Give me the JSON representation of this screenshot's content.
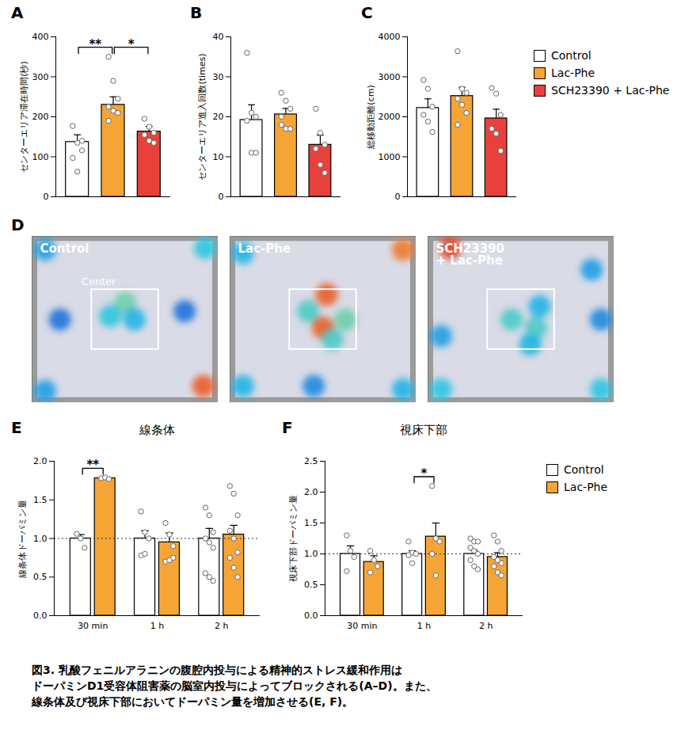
{
  "chart_data": [
    {
      "panel": "A",
      "type": "bar",
      "ylabel": "センターエリア滞在時間(秒)",
      "categories": [
        "Control",
        "Lac-Phe",
        "SCH23390 + Lac-Phe"
      ],
      "colors": [
        "#ffffff",
        "#f5a536",
        "#e8413c"
      ],
      "values": [
        137,
        230,
        163
      ],
      "errors": [
        18,
        20,
        13
      ],
      "points": [
        [
          177,
          135,
          116,
          97,
          63,
          140
        ],
        [
          350,
          290,
          245,
          225,
          215,
          210,
          190
        ],
        [
          195,
          175,
          160,
          155,
          140,
          135
        ]
      ],
      "ylim": [
        0,
        400
      ],
      "yticks": [
        0,
        100,
        200,
        300,
        400
      ],
      "tick_labels": "y",
      "significance": [
        {
          "from": 0,
          "to": 1,
          "label": "**"
        },
        {
          "from": 1,
          "to": 2,
          "label": "*"
        }
      ]
    },
    {
      "panel": "B",
      "type": "bar",
      "ylabel": "センターエリア進入回数(times)",
      "categories": [
        "Control",
        "Lac-Phe",
        "SCH23390 + Lac-Phe"
      ],
      "colors": [
        "#ffffff",
        "#f5a536",
        "#e8413c"
      ],
      "values": [
        19.2,
        20.6,
        13
      ],
      "errors": [
        3.8,
        1.5,
        2.4
      ],
      "points": [
        [
          36,
          21,
          20,
          19,
          11,
          11
        ],
        [
          26,
          24,
          22,
          20,
          17,
          17,
          18
        ],
        [
          22,
          16,
          13,
          12,
          8,
          6
        ]
      ],
      "ylim": [
        0,
        40
      ],
      "yticks": [
        0,
        10,
        20,
        30,
        40
      ],
      "tick_labels": "y"
    },
    {
      "panel": "C",
      "type": "bar",
      "ylabel": "総移動距離(cm)",
      "categories": [
        "Control",
        "Lac-Phe",
        "SCH23390 + Lac-Phe"
      ],
      "colors": [
        "#ffffff",
        "#f5a536",
        "#e8413c"
      ],
      "values": [
        2220,
        2520,
        1960
      ],
      "errors": [
        230,
        220,
        230
      ],
      "points": [
        [
          2920,
          2700,
          2250,
          2050,
          1880,
          1620
        ],
        [
          3640,
          2700,
          2600,
          2450,
          2300,
          2100,
          1800
        ],
        [
          2720,
          2580,
          2050,
          1700,
          1580,
          1150
        ]
      ],
      "ylim": [
        0,
        4000
      ],
      "yticks": [
        0,
        1000,
        2000,
        3000,
        4000
      ],
      "tick_labels": "y",
      "legend": "right"
    },
    {
      "panel": "D",
      "type": "heatmap",
      "tick_labels": false,
      "center_label": "Center",
      "center_area": [
        0.32,
        0.68
      ],
      "panels": [
        {
          "name": "Control",
          "hotspots": [
            [
              0.93,
              0.07,
              0.35
            ],
            [
              0.07,
              0.08,
              0.25
            ],
            [
              0.07,
              0.93,
              0.25
            ],
            [
              0.92,
              0.9,
              0.9
            ],
            [
              0.5,
              0.4,
              0.45
            ],
            [
              0.42,
              0.48,
              0.35
            ],
            [
              0.55,
              0.5,
              0.3
            ],
            [
              0.15,
              0.5,
              0.15
            ],
            [
              0.82,
              0.45,
              0.15
            ]
          ]
        },
        {
          "name": "Lac-Phe",
          "hotspots": [
            [
              0.93,
              0.08,
              0.85
            ],
            [
              0.07,
              0.1,
              0.3
            ],
            [
              0.07,
              0.9,
              0.3
            ],
            [
              0.93,
              0.92,
              0.3
            ],
            [
              0.52,
              0.35,
              0.9
            ],
            [
              0.5,
              0.55,
              0.9
            ],
            [
              0.62,
              0.5,
              0.45
            ],
            [
              0.42,
              0.45,
              0.4
            ],
            [
              0.55,
              0.62,
              0.4
            ],
            [
              0.45,
              0.9,
              0.2
            ]
          ]
        },
        {
          "name": "SCH23390 + Lac-Phe",
          "hotspots": [
            [
              0.12,
              0.07,
              0.95
            ],
            [
              0.07,
              0.6,
              0.25
            ],
            [
              0.07,
              0.92,
              0.35
            ],
            [
              0.93,
              0.92,
              0.35
            ],
            [
              0.88,
              0.2,
              0.25
            ],
            [
              0.45,
              0.5,
              0.4
            ],
            [
              0.58,
              0.55,
              0.4
            ],
            [
              0.6,
              0.42,
              0.3
            ],
            [
              0.55,
              0.65,
              0.3
            ],
            [
              0.93,
              0.5,
              0.2
            ]
          ]
        }
      ]
    },
    {
      "panel": "E",
      "type": "bar",
      "title": "線条体",
      "ylabel": "線条体ドーパミン量",
      "categories": [
        "30 min",
        "1 h",
        "2 h"
      ],
      "series": [
        {
          "name": "Control",
          "color": "#ffffff",
          "values": [
            1.0,
            1.0,
            1.0
          ],
          "errors": [
            0.05,
            0.1,
            0.13
          ],
          "points": [
            [
              1.06,
              1.0,
              0.88
            ],
            [
              1.35,
              1.08,
              1.0,
              0.78,
              0.8
            ],
            [
              1.4,
              1.3,
              1.08,
              1.0,
              0.95,
              0.88,
              0.55,
              0.5,
              0.45
            ]
          ]
        },
        {
          "name": "Lac-Phe",
          "color": "#f5a536",
          "values": [
            1.78,
            0.95,
            1.05
          ],
          "errors": [
            0.01,
            0.12,
            0.12
          ],
          "points": [
            [
              1.78,
              1.79,
              1.77
            ],
            [
              1.2,
              1.05,
              0.9,
              0.7,
              0.72,
              0.75
            ],
            [
              1.68,
              1.58,
              1.3,
              1.1,
              1.0,
              0.82,
              0.75,
              0.62,
              0.5
            ]
          ]
        }
      ],
      "reference_line": 1,
      "ylim": [
        0,
        2
      ],
      "yticks": [
        {
          "value": 0,
          "label": "0.0"
        },
        {
          "value": 0.5,
          "label": "0.5"
        },
        {
          "value": 1,
          "label": "1.0"
        },
        {
          "value": 1.5,
          "label": "1.5"
        },
        {
          "value": 2,
          "label": "2.0"
        }
      ],
      "significance": [
        {
          "category": 0,
          "label": "**"
        }
      ]
    },
    {
      "panel": "F",
      "type": "bar",
      "title": "視床下部",
      "ylabel": "視床下部ドーパミン量",
      "categories": [
        "30 min",
        "1 h",
        "2 h"
      ],
      "series": [
        {
          "name": "Control",
          "color": "#ffffff",
          "values": [
            1.0,
            1.0,
            1.0
          ],
          "errors": [
            0.13,
            0.05,
            0.06
          ],
          "points": [
            [
              1.3,
              1.05,
              0.95,
              0.72
            ],
            [
              1.2,
              1.02,
              1.0,
              0.98,
              0.85
            ],
            [
              1.25,
              1.2,
              1.2,
              1.1,
              1.05,
              1.0,
              0.9,
              0.8,
              0.75
            ]
          ]
        },
        {
          "name": "Lac-Phe",
          "color": "#f5a536",
          "values": [
            0.87,
            1.28,
            0.95
          ],
          "errors": [
            0.1,
            0.22,
            0.07
          ],
          "points": [
            [
              1.05,
              0.9,
              0.8,
              0.7
            ],
            [
              2.1,
              1.25,
              1.2,
              1.0,
              0.65
            ],
            [
              1.3,
              1.2,
              1.05,
              0.95,
              0.9,
              0.85,
              0.8,
              0.7,
              0.65
            ]
          ]
        }
      ],
      "reference_line": 1,
      "ylim": [
        0,
        2.5
      ],
      "yticks": [
        {
          "value": 0,
          "label": "0.0"
        },
        {
          "value": 0.5,
          "label": "0.5"
        },
        {
          "value": 1,
          "label": "1.0"
        },
        {
          "value": 1.5,
          "label": "1.5"
        },
        {
          "value": 2,
          "label": "2.0"
        },
        {
          "value": 2.5,
          "label": "2.5"
        }
      ],
      "significance": [
        {
          "category": 1,
          "label": "*"
        }
      ],
      "legend": "right"
    }
  ],
  "caption": [
    "図3. 乳酸フェニルアラニンの腹腔内投与による精神的ストレス緩和作用は",
    "ドーパミンD1受容体阻害薬の脳室内投与によってブロックされる(A–D)。また、",
    "線条体及び視床下部においてドーパミン量を増加させる(E, F)。"
  ]
}
